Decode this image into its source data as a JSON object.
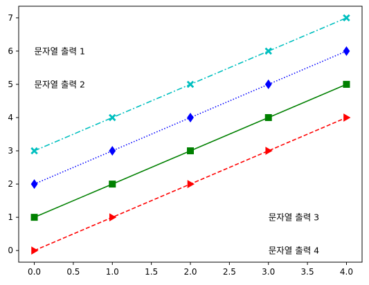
{
  "chart_data": {
    "type": "line",
    "title": "",
    "xlabel": "",
    "ylabel": "",
    "x": [
      0,
      1,
      2,
      3,
      4
    ],
    "xlim": [
      -0.2,
      4.2
    ],
    "ylim": [
      -0.35,
      7.35
    ],
    "xticks": [
      0.0,
      0.5,
      1.0,
      1.5,
      2.0,
      2.5,
      3.0,
      3.5,
      4.0
    ],
    "xtick_labels": [
      "0.0",
      "0.5",
      "1.0",
      "1.5",
      "2.0",
      "2.5",
      "3.0",
      "3.5",
      "4.0"
    ],
    "yticks": [
      0,
      1,
      2,
      3,
      4,
      5,
      6,
      7
    ],
    "ytick_labels": [
      "0",
      "1",
      "2",
      "3",
      "4",
      "5",
      "6",
      "7"
    ],
    "grid": false,
    "legend": false,
    "series": [
      {
        "values": [
          0,
          1,
          2,
          3,
          4
        ],
        "color": "#ff0000",
        "line_style": "dashed",
        "marker": "triangle-right"
      },
      {
        "values": [
          1,
          2,
          3,
          4,
          5
        ],
        "color": "#008000",
        "line_style": "solid",
        "marker": "square"
      },
      {
        "values": [
          2,
          3,
          4,
          5,
          6
        ],
        "color": "#0000ff",
        "line_style": "dotted",
        "marker": "diamond"
      },
      {
        "values": [
          3,
          4,
          5,
          6,
          7
        ],
        "color": "#00bfbf",
        "line_style": "dashdot",
        "marker": "x-filled"
      }
    ],
    "annotations": [
      {
        "text": "문자열 출력 1",
        "x": 0.0,
        "y": 6.0
      },
      {
        "text": "문자열 출력 2",
        "x": 0.0,
        "y": 5.0
      },
      {
        "text": "문자열 출력 3",
        "x": 3.0,
        "y": 1.0
      },
      {
        "text": "문자열 출력 4",
        "x": 3.0,
        "y": 0.0
      }
    ]
  }
}
